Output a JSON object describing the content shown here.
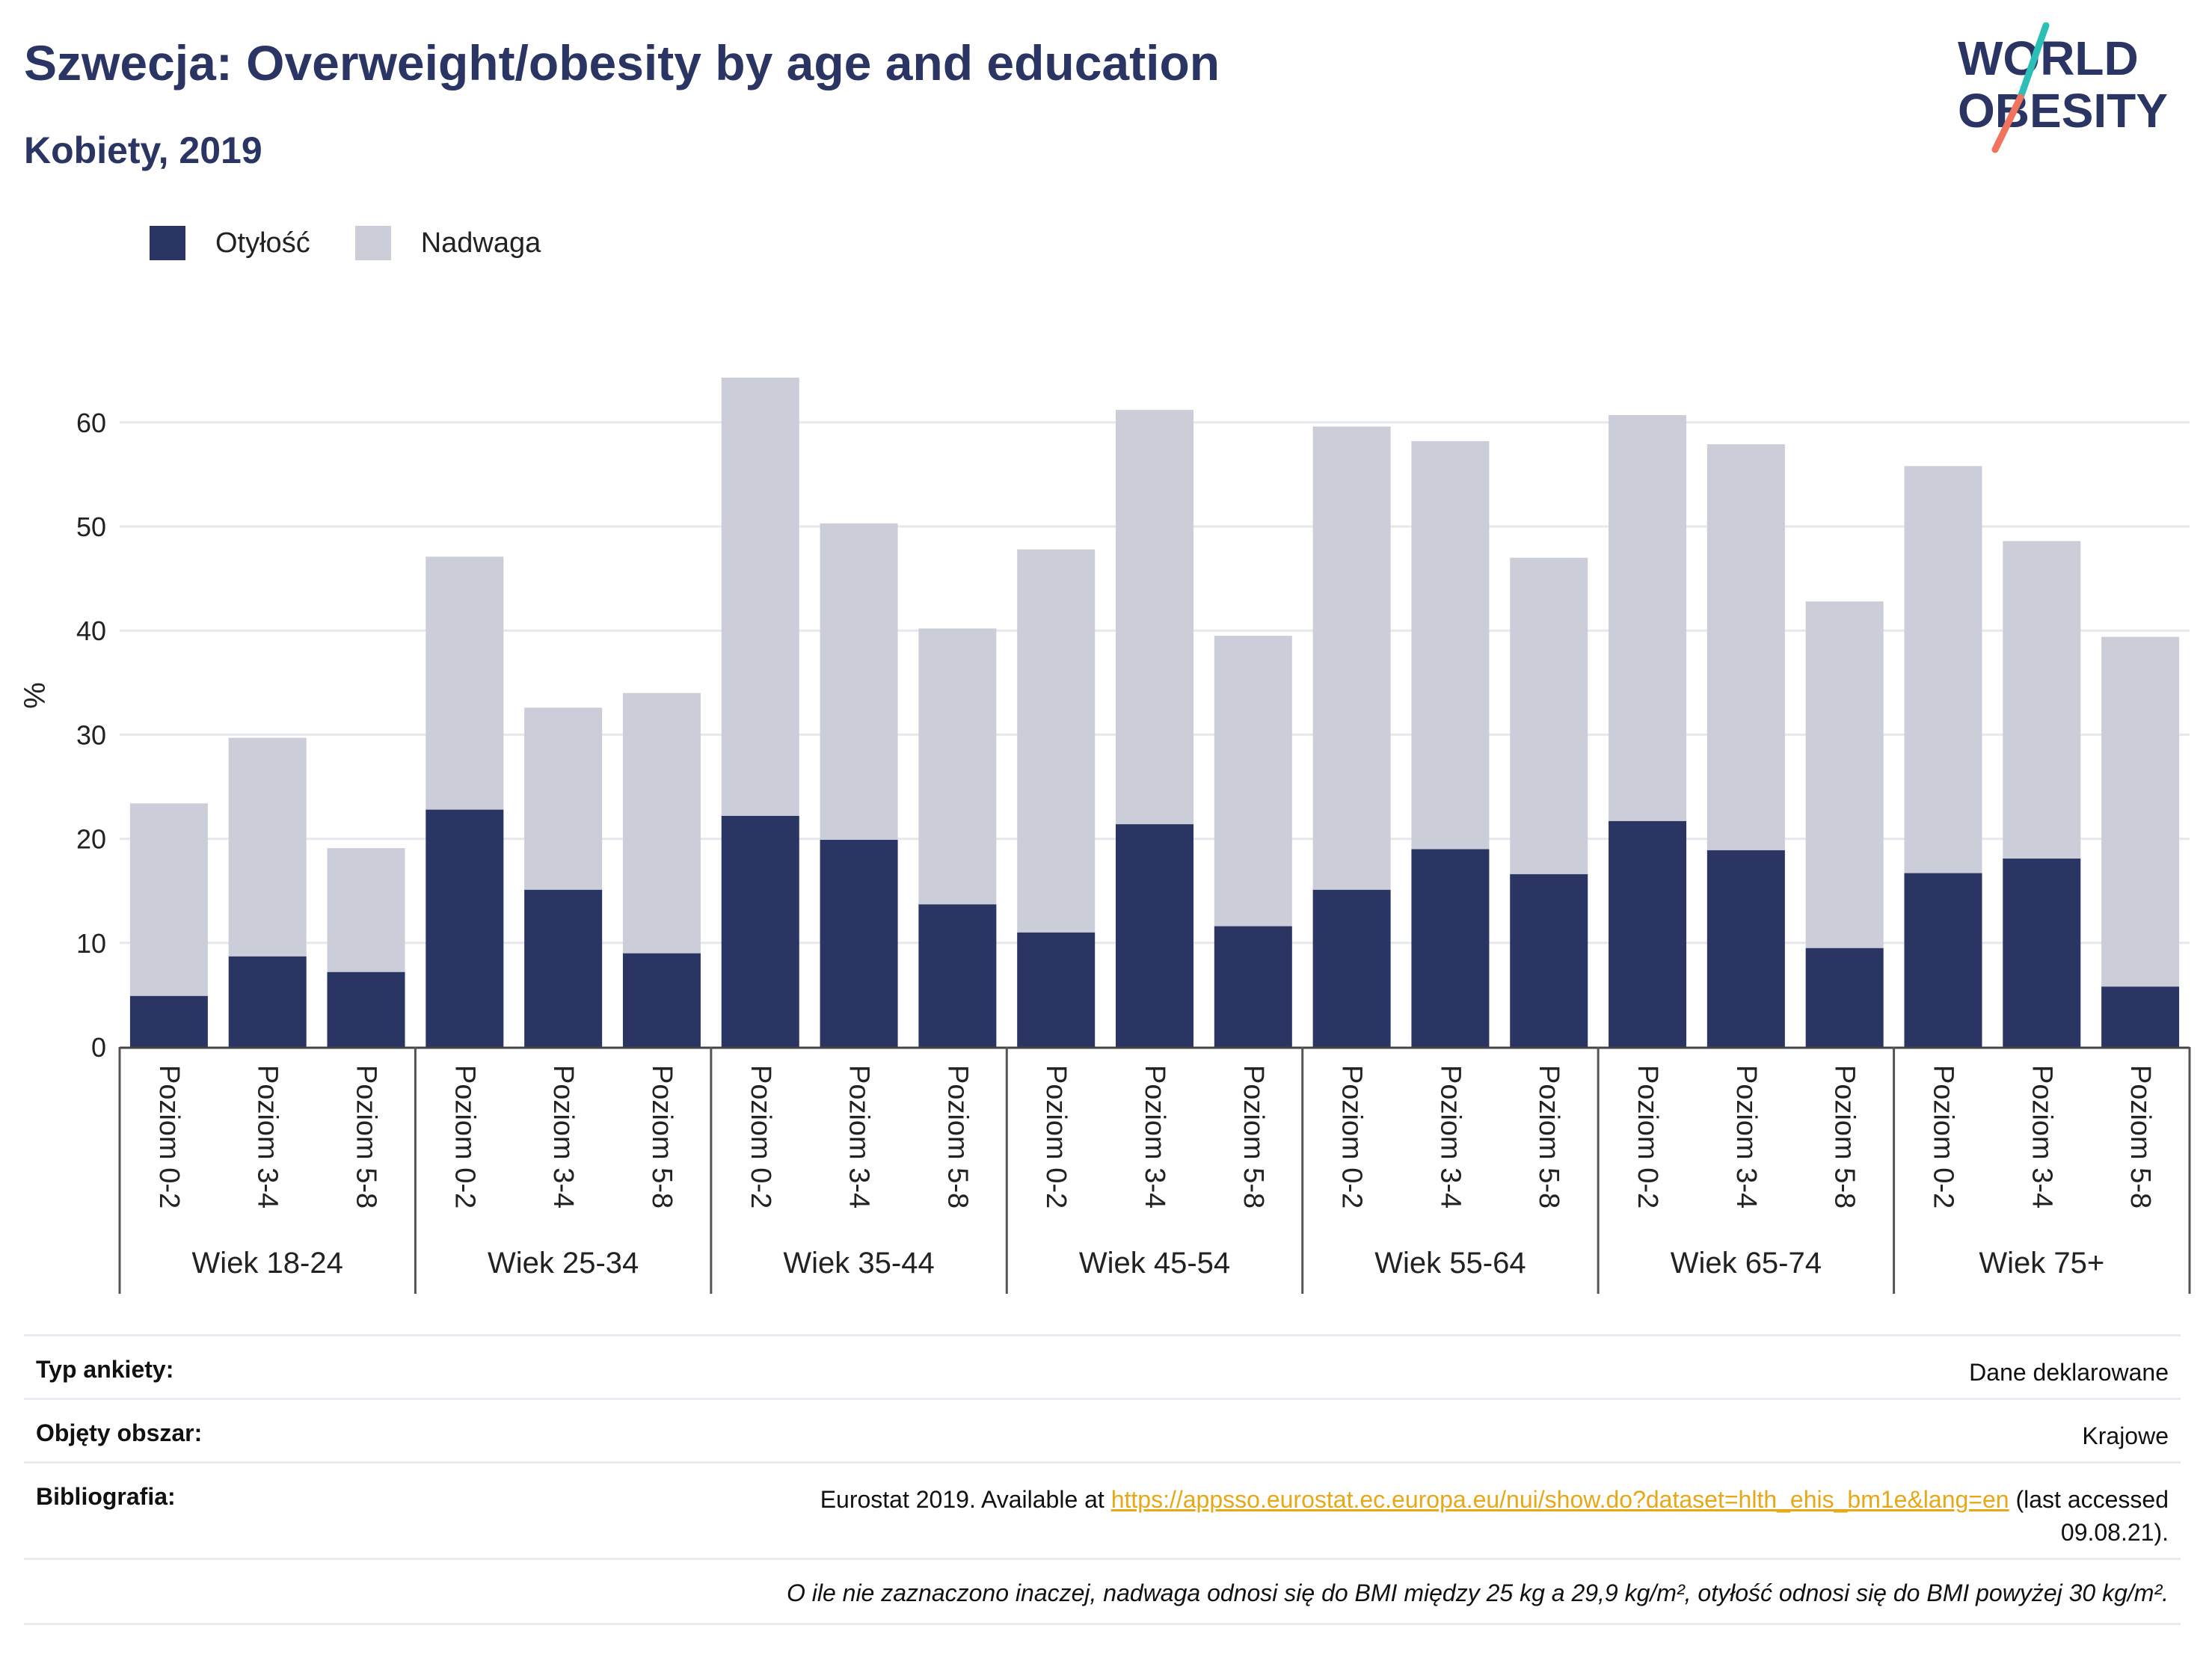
{
  "header": {
    "title": "Szwecja: Overweight/obesity by age and education",
    "subtitle": "Kobiety, 2019",
    "logo_line1": "WORLD",
    "logo_line2": "OBESITY"
  },
  "colors": {
    "obesity": "#2a3563",
    "overweight": "#cbcdd9",
    "logo_teal": "#2bbfb5",
    "logo_coral": "#f0735f",
    "link": "#e6a817"
  },
  "chart_data": {
    "type": "bar",
    "stacked": true,
    "ylabel": "%",
    "ylim": [
      0,
      65
    ],
    "yticks": [
      0,
      10,
      20,
      30,
      40,
      50,
      60
    ],
    "grid": true,
    "legend_position": "top-left",
    "groups": [
      "Wiek 18-24",
      "Wiek 25-34",
      "Wiek 35-44",
      "Wiek 45-54",
      "Wiek 55-64",
      "Wiek 65-74",
      "Wiek 75+"
    ],
    "levels": [
      "Poziom 0-2",
      "Poziom 3-4",
      "Poziom 5-8"
    ],
    "series": [
      {
        "name": "Otyłość",
        "values": [
          4.9,
          8.7,
          7.2,
          22.8,
          15.1,
          9.0,
          22.2,
          19.9,
          13.7,
          11.0,
          21.4,
          11.6,
          15.1,
          19.0,
          16.6,
          21.7,
          18.9,
          9.5,
          16.7,
          18.1,
          5.8
        ]
      },
      {
        "name": "Nadwaga",
        "values": [
          18.5,
          21.0,
          11.9,
          24.3,
          17.5,
          25.0,
          42.1,
          30.4,
          26.5,
          36.8,
          39.8,
          27.9,
          44.5,
          39.2,
          30.4,
          39.0,
          39.0,
          33.3,
          39.1,
          30.5,
          33.6
        ]
      }
    ]
  },
  "info": {
    "survey_type_label": "Typ ankiety:",
    "survey_type_value": "Dane deklarowane",
    "coverage_label": "Objęty obszar:",
    "coverage_value": "Krajowe",
    "bibliography_label": "Bibliografia:",
    "bibliography_prefix": "Eurostat 2019. Available at",
    "bibliography_link": "https://appsso.eurostat.ec.europa.eu/nui/show.do?dataset=hlth_ehis_bm1e&lang=en",
    "bibliography_suffix": "(last accessed",
    "bibliography_date": "09.08.21).",
    "note": "O ile nie zaznaczono inaczej, nadwaga odnosi się do BMI między 25 kg a 29,9 kg/m², otyłość odnosi się do BMI powyżej 30 kg/m²."
  }
}
